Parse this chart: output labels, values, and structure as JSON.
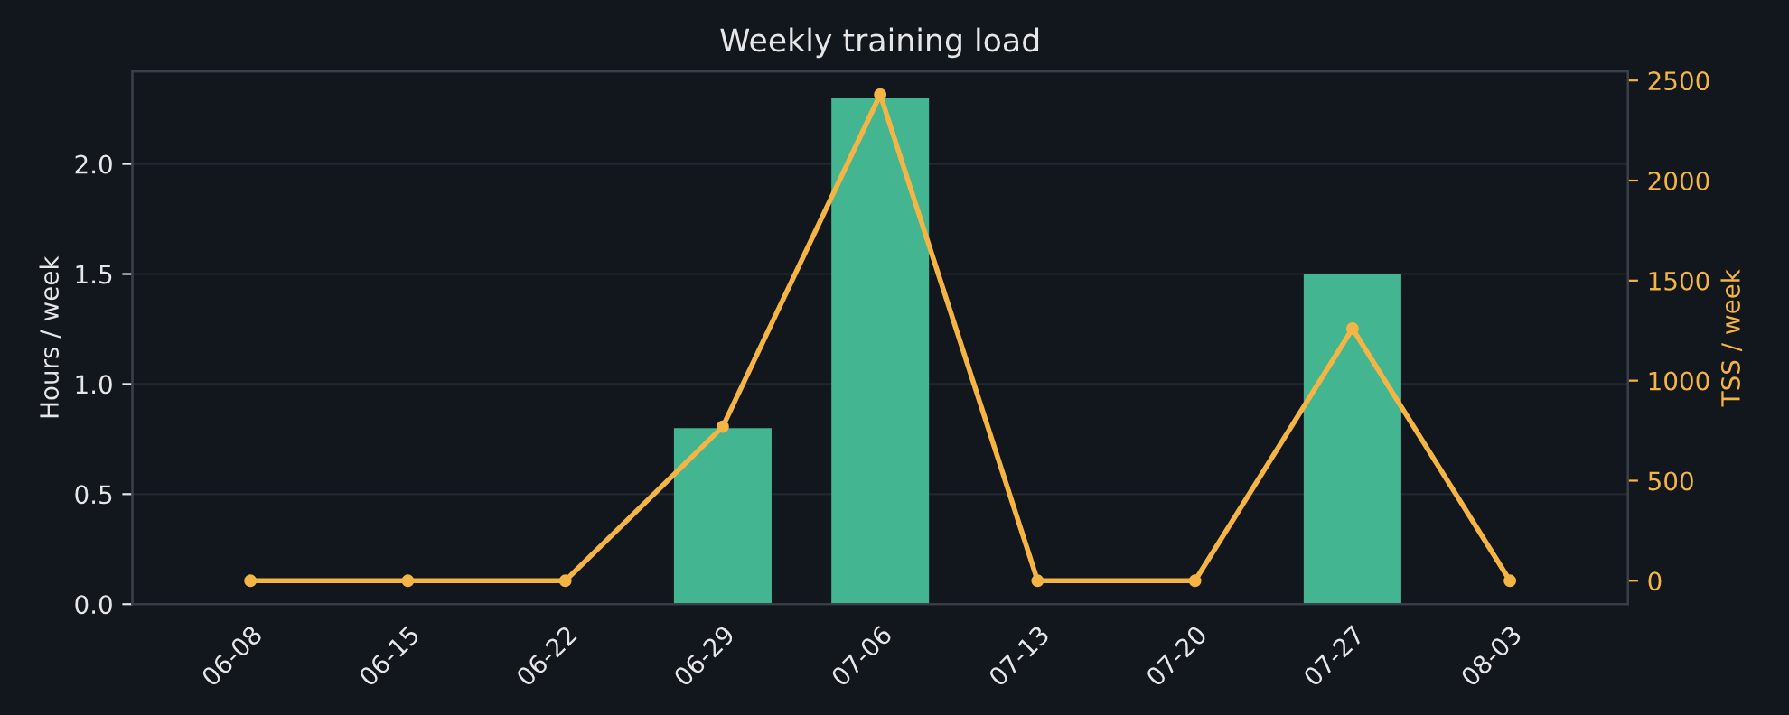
{
  "chart_data": {
    "type": "bar",
    "title": "Weekly training load",
    "ylabel": "Hours / week",
    "y2label": "TSS / week",
    "categories": [
      "06-08",
      "06-15",
      "06-22",
      "06-29",
      "07-06",
      "07-13",
      "07-20",
      "07-27",
      "08-03"
    ],
    "series": [
      {
        "color": "#43b591",
        "values": [
          0,
          0,
          0,
          0.8,
          2.3,
          0,
          0,
          1.5,
          0
        ]
      },
      {
        "type": "line",
        "axis": "y2",
        "color": "#f5b545",
        "marker": "circle",
        "values": [
          0,
          0,
          0,
          770,
          2430,
          0,
          0,
          1260,
          0
        ]
      }
    ],
    "ylim": [
      0,
      2.42
    ],
    "yticks": [
      {
        "value": 0,
        "label": "0.0"
      },
      0.5,
      {
        "value": 1,
        "label": "1.0"
      },
      1.5,
      {
        "value": 2,
        "label": "2.0"
      }
    ],
    "y2lim": [
      -117,
      2545
    ],
    "y2ticks": [
      0,
      500,
      1000,
      1500,
      2000,
      2500
    ],
    "grid": "y"
  }
}
